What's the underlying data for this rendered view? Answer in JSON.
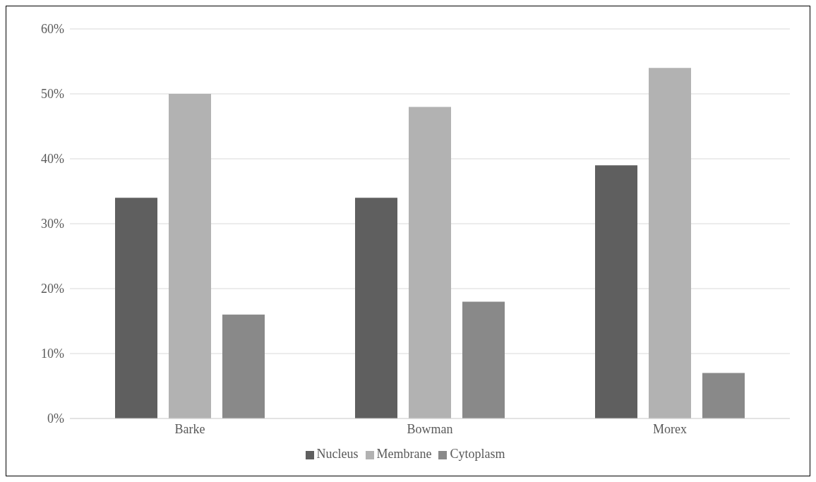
{
  "chart_data": {
    "type": "bar",
    "categories": [
      "Barke",
      "Bowman",
      "Morex"
    ],
    "series": [
      {
        "name": "Nucleus",
        "color": "#5f5f5f",
        "values": [
          34,
          34,
          39
        ]
      },
      {
        "name": "Membrane",
        "color": "#b2b2b2",
        "values": [
          50,
          48,
          54
        ]
      },
      {
        "name": "Cytoplasm",
        "color": "#898989",
        "values": [
          16,
          18,
          7
        ]
      }
    ],
    "ylim": [
      0,
      60
    ],
    "yticks": [
      {
        "value": 0,
        "label": "0%"
      },
      {
        "value": 10,
        "label": "10%"
      },
      {
        "value": 20,
        "label": "20%"
      },
      {
        "value": 30,
        "label": "30%"
      },
      {
        "value": 40,
        "label": "40%"
      },
      {
        "value": 50,
        "label": "50%"
      },
      {
        "value": 60,
        "label": "60%"
      }
    ],
    "grid": "y",
    "legend": "bottom"
  }
}
